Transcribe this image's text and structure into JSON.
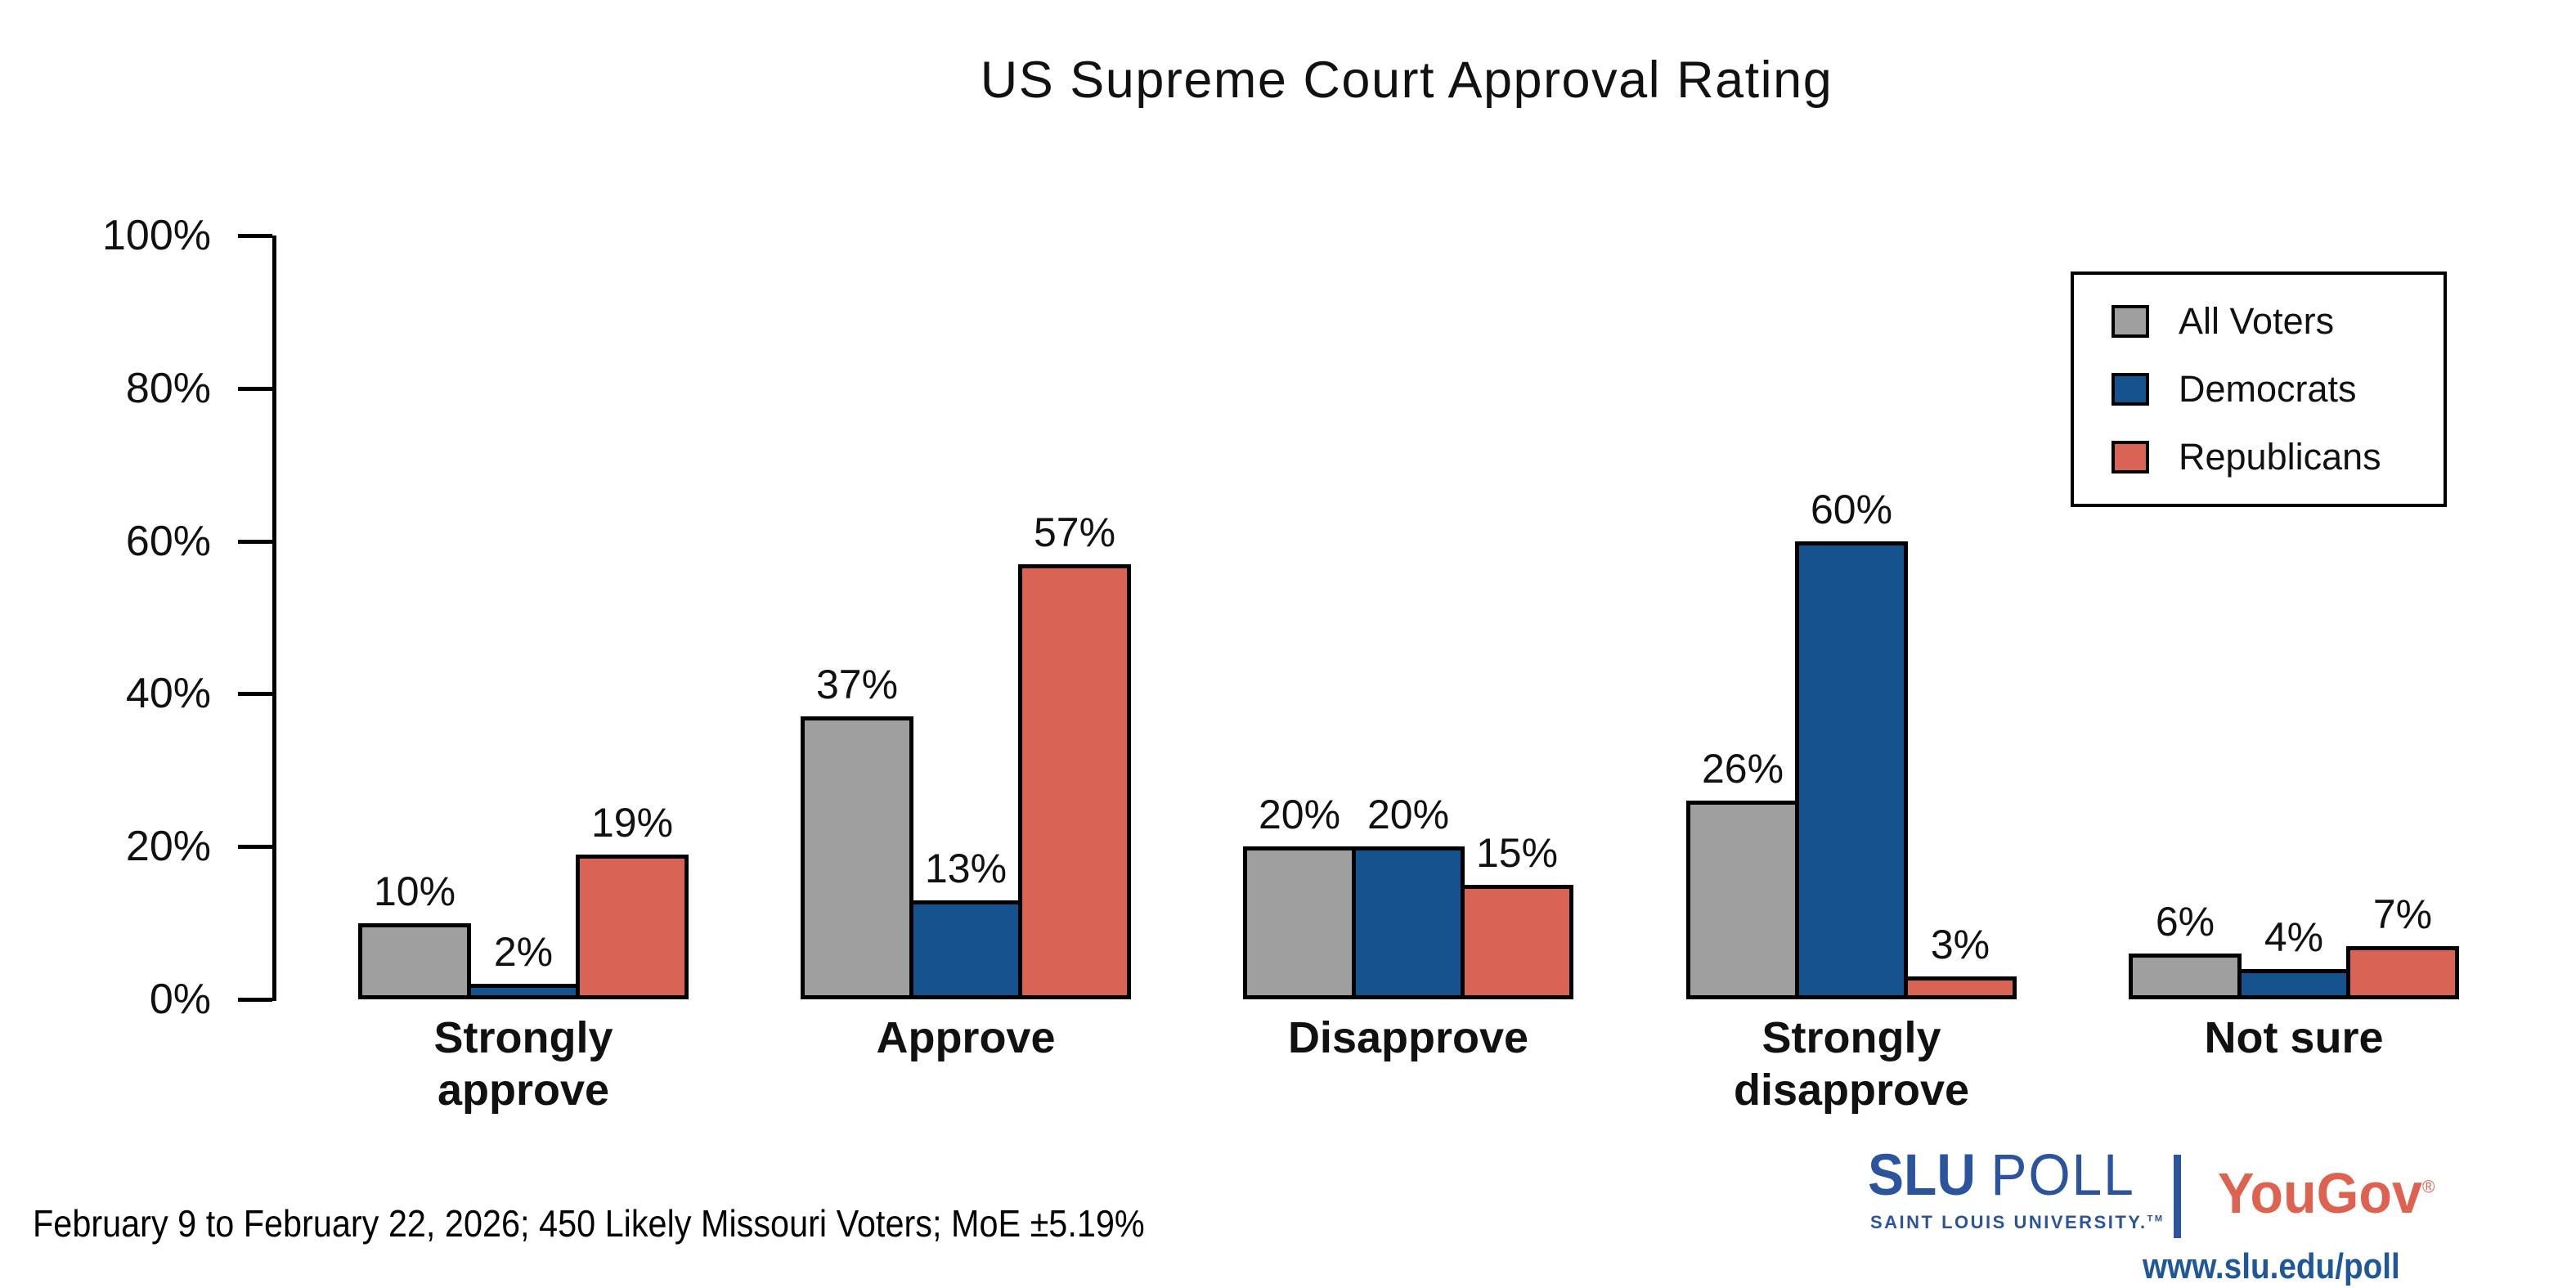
{
  "title": "US Supreme Court Approval Rating",
  "footer": {
    "note": "February 9 to February 22, 2026; 450 Likely Missouri Voters; MoE ±5.19%"
  },
  "branding": {
    "slu": "SLU",
    "poll": "POLL",
    "subtitle": "SAINT LOUIS UNIVERSITY.",
    "tm": "TM",
    "yougov": "YouGov",
    "registered": "®",
    "url": "www.slu.edu/poll",
    "slu_blue": "#2b549c",
    "url_blue": "#1f5799",
    "yougov_red": "#dd6350"
  },
  "chart_data": {
    "type": "bar",
    "title": "US Supreme Court Approval Rating",
    "categories": [
      "Strongly approve",
      "Approve",
      "Disapprove",
      "Strongly disapprove",
      "Not sure"
    ],
    "categories_display": [
      "Strongly\napprove",
      "Approve",
      "Disapprove",
      "Strongly\ndisapprove",
      "Not sure"
    ],
    "series": [
      {
        "name": "All Voters",
        "color": "#9f9f9f",
        "values": [
          10,
          37,
          20,
          26,
          6
        ]
      },
      {
        "name": "Democrats",
        "color": "#15518d",
        "values": [
          2,
          13,
          20,
          60,
          4
        ]
      },
      {
        "name": "Republicans",
        "color": "#d96456",
        "values": [
          19,
          57,
          15,
          3,
          7
        ]
      }
    ],
    "xlabel": "",
    "ylabel": "",
    "ylim": [
      0,
      100
    ],
    "y_ticks": [
      "0%",
      "20%",
      "40%",
      "60%",
      "80%",
      "100%"
    ],
    "y_tick_values": [
      0,
      20,
      40,
      60,
      80,
      100
    ],
    "value_label_format": "{v}%",
    "legend_position": "upper right",
    "grid": false,
    "bar_outline_color": "#000000"
  }
}
